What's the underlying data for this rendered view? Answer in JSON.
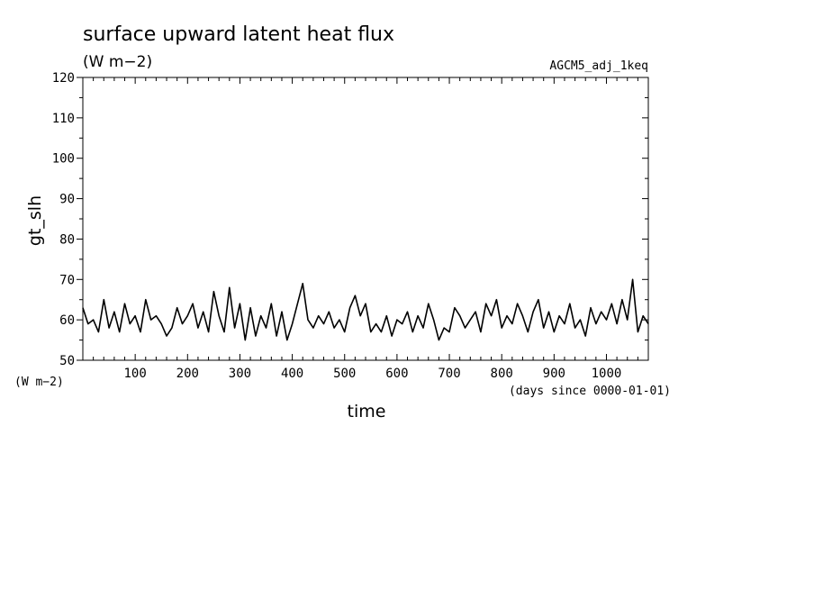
{
  "chart_data": {
    "type": "line",
    "title": "surface upward latent heat flux",
    "subtitle": "(W m−2)",
    "dataset_label": "AGCM5_adj_1keq",
    "xlabel": "time",
    "xunits": "(days since 0000-01-01)",
    "ylabel": "gt_slh",
    "yunits": "(W m−2)",
    "xlim": [
      0,
      1080
    ],
    "ylim": [
      50,
      120
    ],
    "x_ticks": [
      100,
      200,
      300,
      400,
      500,
      600,
      700,
      800,
      900,
      1000
    ],
    "x_tick_labels": [
      "100",
      "200",
      "300",
      "400",
      "500",
      "600",
      "700",
      "800",
      "900",
      "1000"
    ],
    "y_ticks": [
      50,
      60,
      70,
      80,
      90,
      100,
      110,
      120
    ],
    "y_tick_labels": [
      "50",
      "60",
      "70",
      "80",
      "90",
      "100",
      "110",
      "120"
    ],
    "grid": false,
    "series": [
      {
        "color": "#000000",
        "x": [
          0,
          10,
          20,
          30,
          40,
          50,
          60,
          70,
          80,
          90,
          100,
          110,
          120,
          130,
          140,
          150,
          160,
          170,
          180,
          190,
          200,
          210,
          220,
          230,
          240,
          250,
          260,
          270,
          280,
          290,
          300,
          310,
          320,
          330,
          340,
          350,
          360,
          370,
          380,
          390,
          400,
          410,
          420,
          430,
          440,
          450,
          460,
          470,
          480,
          490,
          500,
          510,
          520,
          530,
          540,
          550,
          560,
          570,
          580,
          590,
          600,
          610,
          620,
          630,
          640,
          650,
          660,
          670,
          680,
          690,
          700,
          710,
          720,
          730,
          740,
          750,
          760,
          770,
          780,
          790,
          800,
          810,
          820,
          830,
          840,
          850,
          860,
          870,
          880,
          890,
          900,
          910,
          920,
          930,
          940,
          950,
          960,
          970,
          980,
          990,
          1000,
          1010,
          1020,
          1030,
          1040,
          1050,
          1060,
          1070,
          1080
        ],
        "y": [
          63,
          59,
          60,
          57,
          65,
          58,
          62,
          57,
          64,
          59,
          61,
          57,
          65,
          60,
          61,
          59,
          56,
          58,
          63,
          59,
          61,
          64,
          58,
          62,
          57,
          67,
          61,
          57,
          68,
          58,
          64,
          55,
          63,
          56,
          61,
          58,
          64,
          56,
          62,
          55,
          59,
          64,
          69,
          60,
          58,
          61,
          59,
          62,
          58,
          60,
          57,
          63,
          66,
          61,
          64,
          57,
          59,
          57,
          61,
          56,
          60,
          59,
          62,
          57,
          61,
          58,
          64,
          60,
          55,
          58,
          57,
          63,
          61,
          58,
          60,
          62,
          57,
          64,
          61,
          65,
          58,
          61,
          59,
          64,
          61,
          57,
          62,
          65,
          58,
          62,
          57,
          61,
          59,
          64,
          58,
          60,
          56,
          63,
          59,
          62,
          60,
          64,
          59,
          65,
          60,
          70,
          57,
          61,
          59
        ]
      }
    ]
  }
}
